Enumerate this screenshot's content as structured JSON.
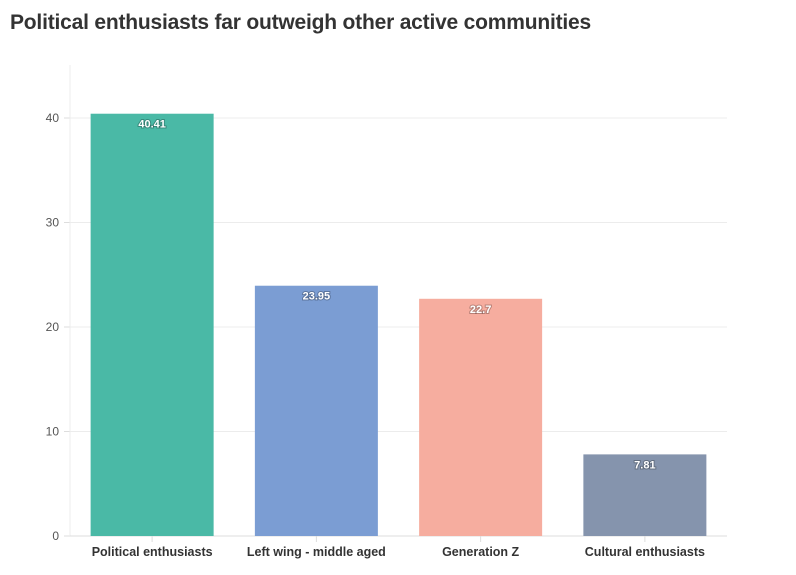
{
  "chart_data": {
    "type": "bar",
    "title": "Political enthusiasts far outweigh other active communities",
    "xlabel": "",
    "ylabel": "",
    "categories": [
      "Political enthusiasts",
      "Left wing - middle aged",
      "Generation Z",
      "Cultural enthusiasts"
    ],
    "values": [
      40.41,
      23.95,
      22.7,
      7.81
    ],
    "data_labels": [
      "40.41",
      "23.95",
      "22.7",
      "7.81"
    ],
    "colors": [
      "#4ab9a6",
      "#7b9dd3",
      "#f6ad9f",
      "#8594ad"
    ],
    "ylim": [
      0,
      45
    ],
    "yticks": [
      0,
      10,
      20,
      30,
      40
    ],
    "grid": true,
    "legend": "none"
  }
}
